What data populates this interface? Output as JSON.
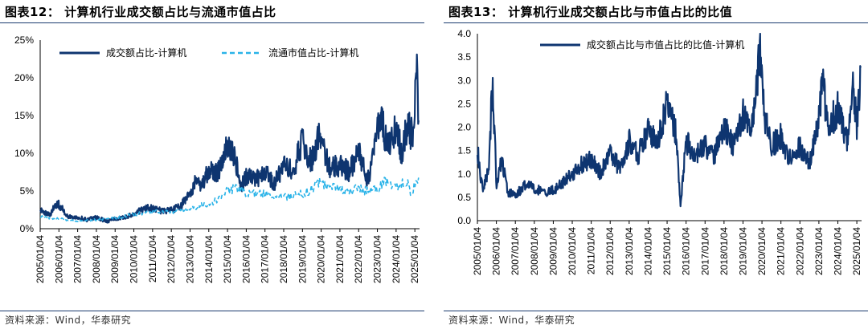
{
  "colors": {
    "dark_navy": "#0e3570",
    "light_blue": "#2ab3e8",
    "rule": "#1a3a6e"
  },
  "left": {
    "title": "图表12：  计算机行业成交额占比与流通市值占比",
    "source": "资料来源：Wind，华泰研究"
  },
  "right": {
    "title": "图表13：  计算机行业成交额占比与市值占比的比值",
    "source": "资料来源：Wind，华泰研究"
  },
  "chart_data": [
    {
      "type": "line",
      "title": "计算机行业成交额占比与流通市值占比",
      "x_tick_labels": [
        "2005/01/04",
        "2006/01/04",
        "2007/01/04",
        "2008/01/04",
        "2009/01/04",
        "2010/01/04",
        "2011/01/04",
        "2012/01/04",
        "2013/01/04",
        "2014/01/04",
        "2015/01/04",
        "2016/01/04",
        "2017/01/04",
        "2018/01/04",
        "2019/01/04",
        "2020/01/04",
        "2021/01/04",
        "2022/01/04",
        "2023/01/04",
        "2024/01/04",
        "2025/01/04"
      ],
      "y_tick_labels": [
        "0%",
        "5%",
        "10%",
        "15%",
        "20%",
        "25%"
      ],
      "ylim": [
        0,
        25
      ],
      "y_unit": "%",
      "legend": "top",
      "series": [
        {
          "name": "成交额占比-计算机",
          "color": "#0e3570",
          "style": "solid",
          "x": [
            2005.0,
            2005.5,
            2005.9,
            2006.5,
            2007.0,
            2007.5,
            2008.0,
            2008.5,
            2009.0,
            2009.5,
            2010.0,
            2010.5,
            2011.0,
            2011.5,
            2012.0,
            2012.5,
            2013.0,
            2013.3,
            2013.6,
            2014.0,
            2014.5,
            2015.0,
            2015.4,
            2015.7,
            2016.0,
            2016.5,
            2017.0,
            2017.5,
            2018.0,
            2018.5,
            2019.0,
            2019.2,
            2019.5,
            2020.0,
            2020.2,
            2020.5,
            2021.0,
            2021.5,
            2022.0,
            2022.5,
            2023.0,
            2023.2,
            2023.5,
            2024.0,
            2024.3,
            2024.6,
            2024.9,
            2025.1,
            2025.2
          ],
          "values": [
            2.5,
            1.8,
            3.5,
            1.6,
            1.5,
            1.2,
            1.5,
            1.0,
            1.3,
            1.5,
            2.0,
            2.6,
            2.8,
            2.3,
            2.5,
            3.0,
            4.5,
            6.5,
            5.5,
            8.0,
            7.5,
            11.0,
            9.5,
            5.5,
            7.0,
            6.5,
            7.5,
            6.0,
            8.5,
            7.5,
            12.0,
            10.0,
            9.0,
            13.0,
            10.0,
            8.0,
            8.5,
            7.5,
            10.0,
            6.5,
            12.5,
            15.0,
            11.0,
            13.5,
            10.0,
            14.0,
            12.0,
            20.3,
            14.0
          ]
        },
        {
          "name": "流通市值占比-计算机",
          "color": "#2ab3e8",
          "style": "dashed",
          "x": [
            2005.0,
            2006.0,
            2007.0,
            2008.0,
            2009.0,
            2010.0,
            2011.0,
            2012.0,
            2013.0,
            2013.5,
            2014.0,
            2014.5,
            2015.0,
            2015.5,
            2016.0,
            2017.0,
            2018.0,
            2019.0,
            2019.5,
            2020.0,
            2020.5,
            2021.0,
            2021.5,
            2022.0,
            2022.5,
            2023.0,
            2023.5,
            2024.0,
            2024.5,
            2024.8,
            2025.0,
            2025.2
          ],
          "values": [
            1.6,
            1.3,
            1.0,
            1.2,
            1.4,
            1.9,
            2.3,
            2.2,
            2.6,
            3.0,
            3.3,
            3.8,
            5.0,
            5.5,
            4.7,
            4.6,
            4.2,
            4.6,
            5.2,
            6.2,
            5.6,
            5.2,
            5.0,
            5.4,
            4.9,
            5.3,
            6.5,
            5.4,
            6.5,
            4.8,
            5.8,
            6.8
          ]
        }
      ]
    },
    {
      "type": "line",
      "title": "计算机行业成交额占比与市值占比的比值",
      "x_tick_labels": [
        "2005/01/04",
        "2006/01/04",
        "2007/01/04",
        "2008/01/04",
        "2009/01/04",
        "2010/01/04",
        "2011/01/04",
        "2012/01/04",
        "2013/01/04",
        "2014/01/04",
        "2015/01/04",
        "2016/01/04",
        "2017/01/04",
        "2018/01/04",
        "2019/01/04",
        "2020/01/04",
        "2021/01/04",
        "2022/01/04",
        "2023/01/04",
        "2024/01/04",
        "2025/01/04"
      ],
      "y_tick_labels": [
        "0.0",
        "0.5",
        "1.0",
        "1.5",
        "2.0",
        "2.5",
        "3.0",
        "3.5",
        "4.0"
      ],
      "ylim": [
        0,
        4
      ],
      "legend": "top",
      "series": [
        {
          "name": "成交额占比与市值占比的比值-计算机",
          "color": "#0e3570",
          "style": "solid",
          "x": [
            2005.0,
            2005.3,
            2005.6,
            2005.8,
            2006.0,
            2006.3,
            2006.6,
            2007.0,
            2007.5,
            2008.0,
            2008.5,
            2009.0,
            2009.5,
            2010.0,
            2010.5,
            2011.0,
            2011.5,
            2012.0,
            2012.5,
            2013.0,
            2013.5,
            2014.0,
            2014.5,
            2015.0,
            2015.5,
            2015.7,
            2016.0,
            2016.5,
            2017.0,
            2017.5,
            2018.0,
            2018.5,
            2019.0,
            2019.5,
            2019.9,
            2020.1,
            2020.5,
            2021.0,
            2021.5,
            2022.0,
            2022.5,
            2023.0,
            2023.2,
            2023.5,
            2024.0,
            2024.5,
            2024.8,
            2025.0,
            2025.2
          ],
          "values": [
            1.5,
            0.6,
            1.2,
            3.0,
            0.8,
            1.3,
            0.6,
            0.55,
            0.75,
            0.7,
            0.6,
            0.65,
            0.8,
            1.0,
            1.2,
            1.3,
            1.0,
            1.5,
            1.1,
            1.7,
            1.4,
            2.0,
            1.6,
            2.6,
            1.8,
            0.3,
            1.7,
            1.4,
            1.6,
            1.4,
            2.0,
            1.6,
            2.3,
            2.0,
            3.7,
            2.3,
            1.6,
            1.8,
            1.3,
            1.6,
            1.2,
            2.2,
            2.9,
            2.0,
            2.4,
            1.7,
            2.9,
            2.0,
            3.0
          ]
        }
      ]
    }
  ]
}
